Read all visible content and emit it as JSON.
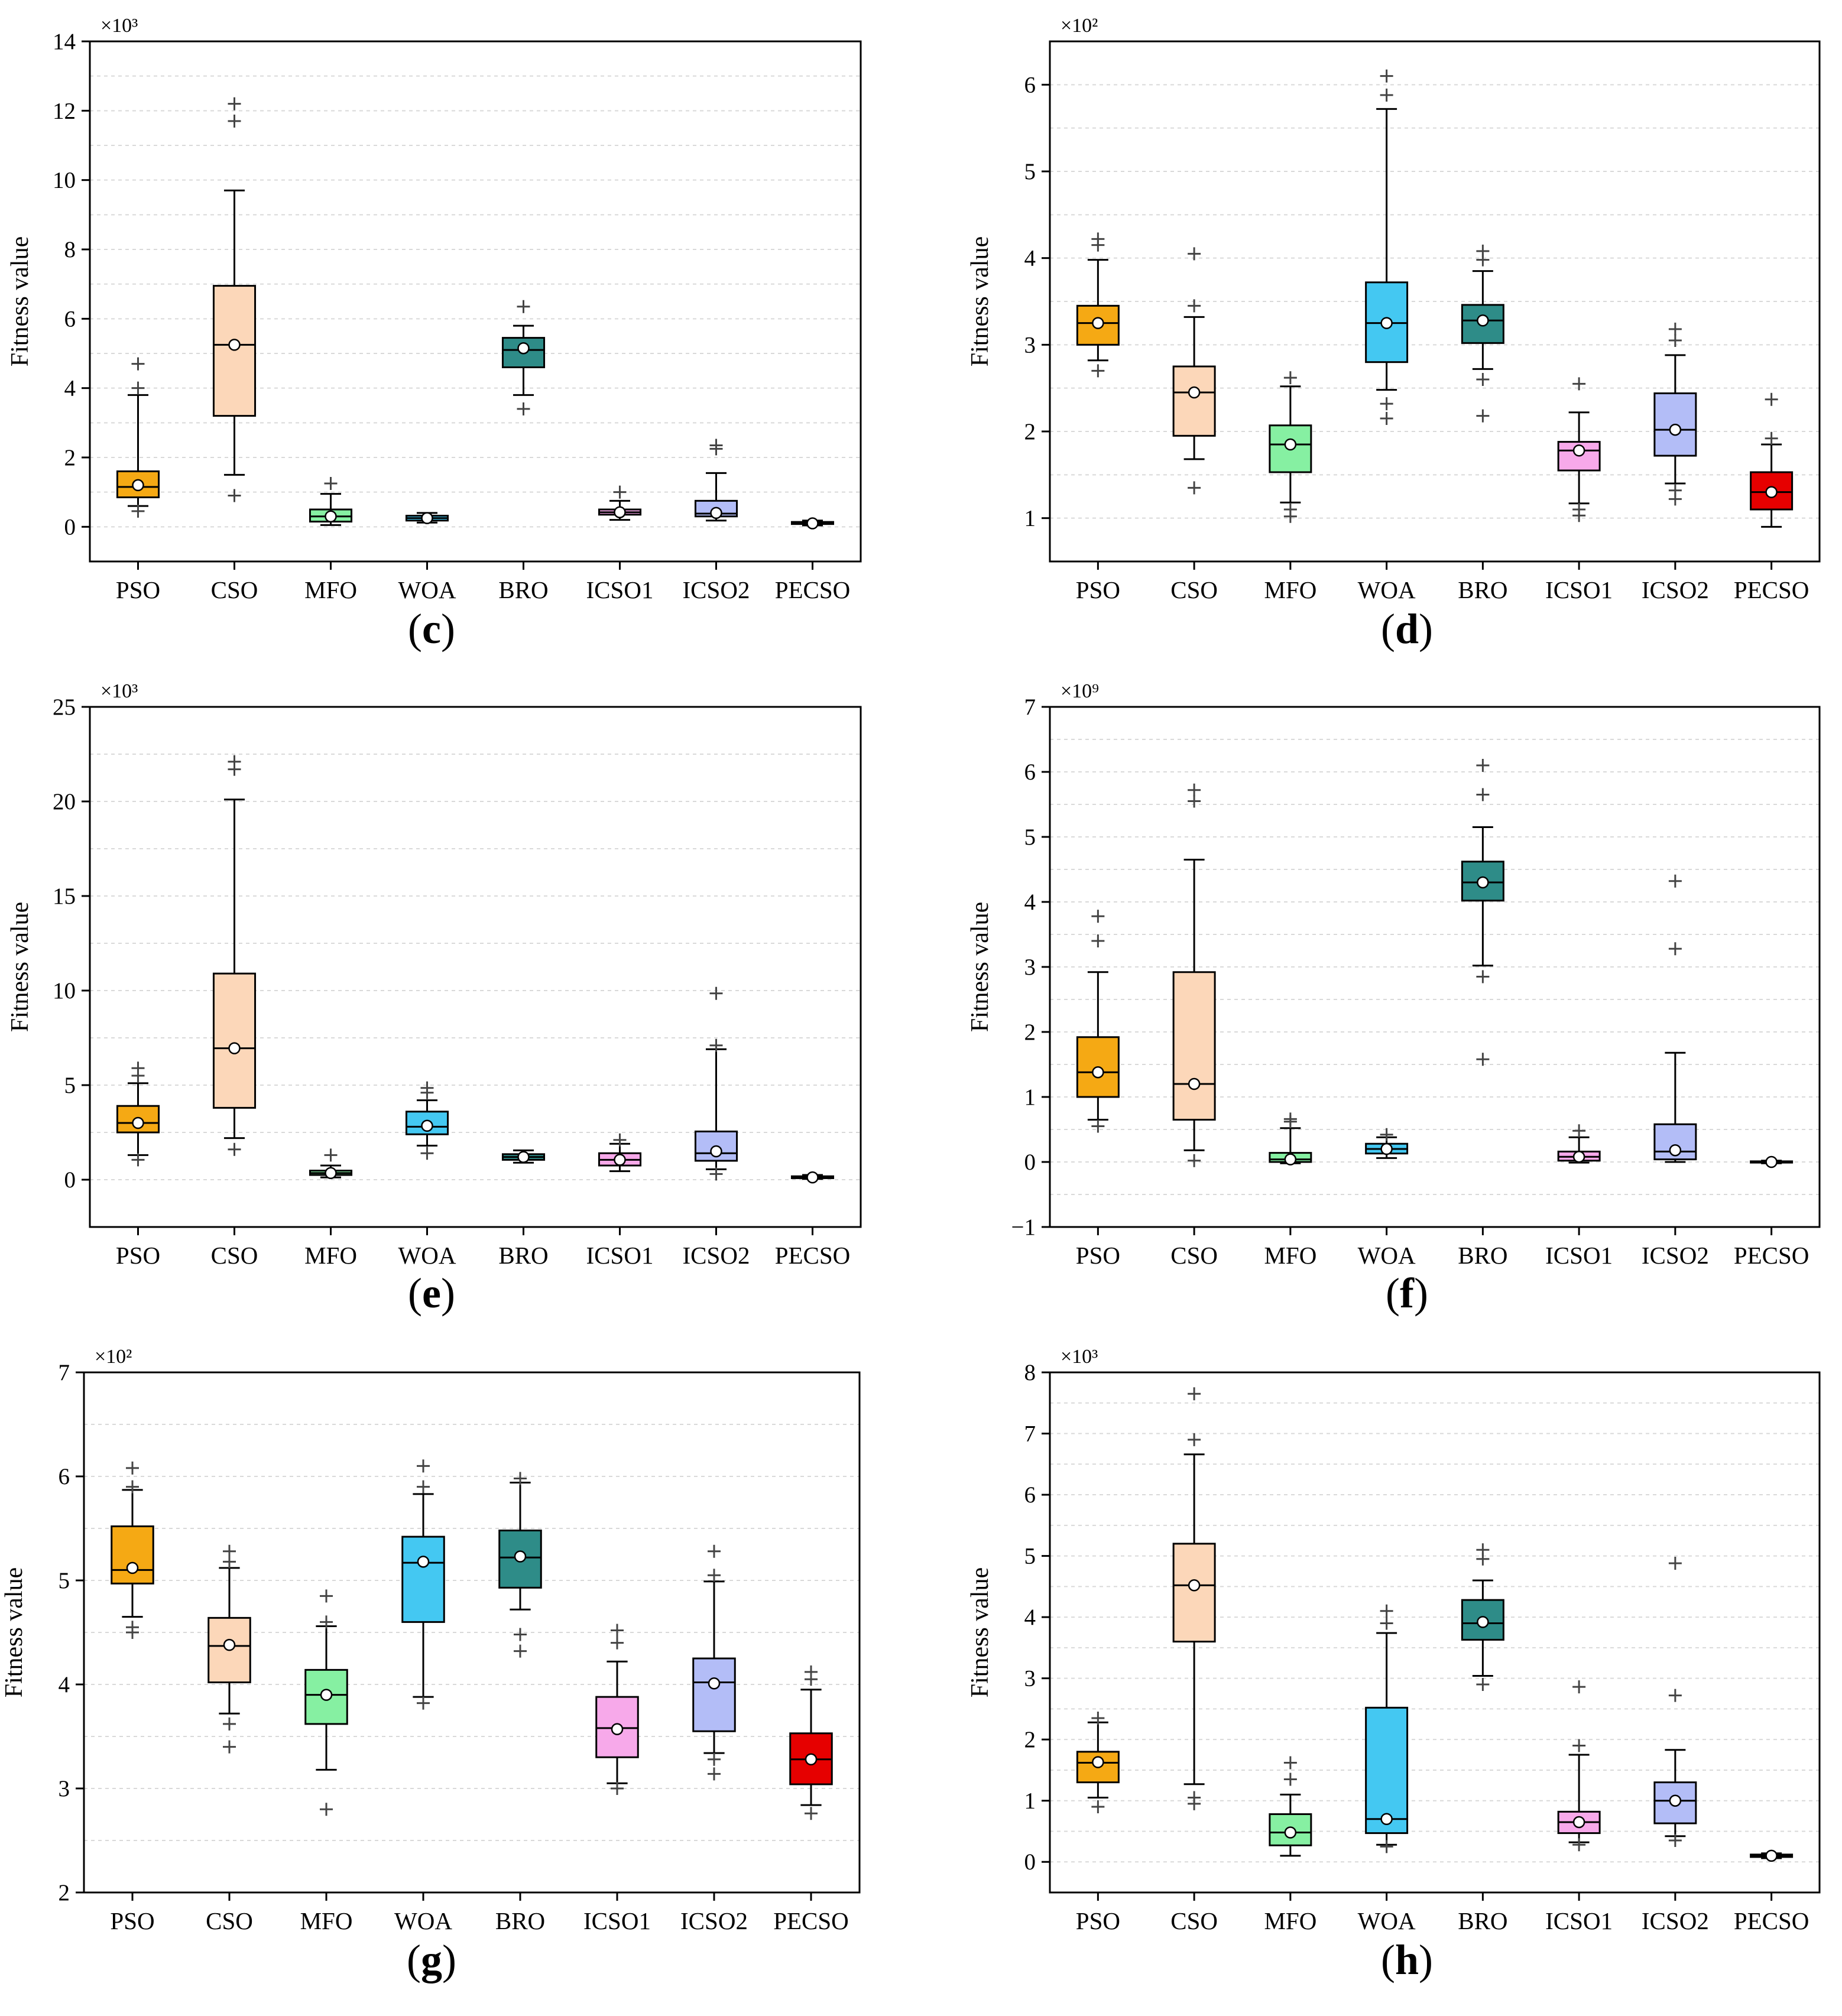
{
  "figure": {
    "y_axis_label": "Fitness value",
    "algorithms": [
      "PSO",
      "CSO",
      "MFO",
      "WOA",
      "BRO",
      "ICSO1",
      "ICSO2",
      "PECSO"
    ],
    "colors": {
      "PSO": "#F5A914",
      "CSO": "#FCD7B9",
      "MFO": "#86F0A2",
      "WOA": "#44C8F2",
      "BRO": "#2E8C88",
      "ICSO1": "#F7A9EA",
      "ICSO2": "#B3BDF7",
      "PECSO": "#E60000"
    }
  },
  "chart_data": [
    {
      "id": "c",
      "type": "box",
      "caption": "(c)",
      "multiplier": "×10³",
      "ylabel": "Fitness value",
      "ylim": [
        -1,
        14
      ],
      "yticks": [
        0,
        2,
        4,
        6,
        8,
        10,
        12,
        14
      ],
      "categories": [
        "PSO",
        "CSO",
        "MFO",
        "WOA",
        "BRO",
        "ICSO1",
        "ICSO2",
        "PECSO"
      ],
      "boxes": [
        {
          "name": "PSO",
          "q1": 0.85,
          "median": 1.15,
          "q3": 1.6,
          "mean": 1.2,
          "whisker_low": 0.6,
          "whisker_high": 3.8,
          "outliers": [
            4.0,
            4.7,
            0.45
          ]
        },
        {
          "name": "CSO",
          "q1": 3.2,
          "median": 5.25,
          "q3": 6.95,
          "mean": 5.25,
          "whisker_low": 1.5,
          "whisker_high": 9.7,
          "outliers": [
            11.7,
            12.2,
            0.9
          ]
        },
        {
          "name": "MFO",
          "q1": 0.15,
          "median": 0.3,
          "q3": 0.5,
          "mean": 0.3,
          "whisker_low": 0.05,
          "whisker_high": 0.95,
          "outliers": [
            1.25
          ]
        },
        {
          "name": "WOA",
          "q1": 0.18,
          "median": 0.25,
          "q3": 0.32,
          "mean": 0.25,
          "whisker_low": 0.12,
          "whisker_high": 0.4,
          "outliers": []
        },
        {
          "name": "BRO",
          "q1": 4.6,
          "median": 5.1,
          "q3": 5.45,
          "mean": 5.15,
          "whisker_low": 3.8,
          "whisker_high": 5.8,
          "outliers": [
            6.35,
            3.4
          ]
        },
        {
          "name": "ICSO1",
          "q1": 0.35,
          "median": 0.42,
          "q3": 0.5,
          "mean": 0.42,
          "whisker_low": 0.2,
          "whisker_high": 0.75,
          "outliers": [
            1.0
          ]
        },
        {
          "name": "ICSO2",
          "q1": 0.3,
          "median": 0.38,
          "q3": 0.75,
          "mean": 0.4,
          "whisker_low": 0.18,
          "whisker_high": 1.55,
          "outliers": [
            2.25,
            2.35
          ]
        },
        {
          "name": "PECSO",
          "q1": 0.08,
          "median": 0.1,
          "q3": 0.14,
          "mean": 0.1,
          "whisker_low": 0.04,
          "whisker_high": 0.18,
          "outliers": []
        }
      ]
    },
    {
      "id": "d",
      "type": "box",
      "caption": "(d)",
      "multiplier": "×10²",
      "ylabel": "Fitness value",
      "ylim": [
        0.5,
        6.5
      ],
      "yticks": [
        1,
        2,
        3,
        4,
        5,
        6
      ],
      "categories": [
        "PSO",
        "CSO",
        "MFO",
        "WOA",
        "BRO",
        "ICSO1",
        "ICSO2",
        "PECSO"
      ],
      "boxes": [
        {
          "name": "PSO",
          "q1": 3.0,
          "median": 3.25,
          "q3": 3.45,
          "mean": 3.25,
          "whisker_low": 2.82,
          "whisker_high": 3.98,
          "outliers": [
            4.15,
            4.22,
            2.7
          ]
        },
        {
          "name": "CSO",
          "q1": 1.95,
          "median": 2.45,
          "q3": 2.75,
          "mean": 2.45,
          "whisker_low": 1.68,
          "whisker_high": 3.32,
          "outliers": [
            3.45,
            4.05,
            1.35
          ]
        },
        {
          "name": "MFO",
          "q1": 1.53,
          "median": 1.85,
          "q3": 2.07,
          "mean": 1.85,
          "whisker_low": 1.18,
          "whisker_high": 2.52,
          "outliers": [
            2.62,
            1.1,
            1.02
          ]
        },
        {
          "name": "WOA",
          "q1": 2.8,
          "median": 3.25,
          "q3": 3.72,
          "mean": 3.25,
          "whisker_low": 2.48,
          "whisker_high": 5.72,
          "outliers": [
            5.88,
            6.1,
            2.32,
            2.15
          ]
        },
        {
          "name": "BRO",
          "q1": 3.02,
          "median": 3.28,
          "q3": 3.46,
          "mean": 3.28,
          "whisker_low": 2.72,
          "whisker_high": 3.85,
          "outliers": [
            3.98,
            4.08,
            2.6,
            2.18
          ]
        },
        {
          "name": "ICSO1",
          "q1": 1.55,
          "median": 1.78,
          "q3": 1.88,
          "mean": 1.78,
          "whisker_low": 1.17,
          "whisker_high": 2.22,
          "outliers": [
            2.55,
            1.1,
            1.03
          ]
        },
        {
          "name": "ICSO2",
          "q1": 1.72,
          "median": 2.02,
          "q3": 2.44,
          "mean": 2.02,
          "whisker_low": 1.4,
          "whisker_high": 2.88,
          "outliers": [
            3.05,
            3.18,
            1.32,
            1.22
          ]
        },
        {
          "name": "PECSO",
          "q1": 1.1,
          "median": 1.3,
          "q3": 1.53,
          "mean": 1.3,
          "whisker_low": 0.9,
          "whisker_high": 1.85,
          "outliers": [
            1.92,
            2.37
          ]
        }
      ]
    },
    {
      "id": "e",
      "type": "box",
      "caption": "(e)",
      "multiplier": "×10³",
      "ylabel": "Fitness value",
      "ylim": [
        -2.5,
        25
      ],
      "yticks": [
        0,
        5,
        10,
        15,
        20,
        25
      ],
      "categories": [
        "PSO",
        "CSO",
        "MFO",
        "WOA",
        "BRO",
        "ICSO1",
        "ICSO2",
        "PECSO"
      ],
      "boxes": [
        {
          "name": "PSO",
          "q1": 2.5,
          "median": 3.0,
          "q3": 3.9,
          "mean": 3.0,
          "whisker_low": 1.3,
          "whisker_high": 5.1,
          "outliers": [
            5.5,
            5.9,
            1.05
          ]
        },
        {
          "name": "CSO",
          "q1": 3.8,
          "median": 6.95,
          "q3": 10.9,
          "mean": 6.95,
          "whisker_low": 2.2,
          "whisker_high": 20.1,
          "outliers": [
            21.7,
            22.1,
            1.6
          ]
        },
        {
          "name": "MFO",
          "q1": 0.25,
          "median": 0.35,
          "q3": 0.48,
          "mean": 0.35,
          "whisker_low": 0.12,
          "whisker_high": 0.75,
          "outliers": [
            1.3
          ]
        },
        {
          "name": "WOA",
          "q1": 2.4,
          "median": 2.8,
          "q3": 3.6,
          "mean": 2.85,
          "whisker_low": 1.8,
          "whisker_high": 4.2,
          "outliers": [
            4.6,
            4.85,
            1.4
          ]
        },
        {
          "name": "BRO",
          "q1": 1.05,
          "median": 1.2,
          "q3": 1.35,
          "mean": 1.2,
          "whisker_low": 0.9,
          "whisker_high": 1.55,
          "outliers": []
        },
        {
          "name": "ICSO1",
          "q1": 0.75,
          "median": 1.05,
          "q3": 1.4,
          "mean": 1.05,
          "whisker_low": 0.45,
          "whisker_high": 1.9,
          "outliers": [
            2.1
          ]
        },
        {
          "name": "ICSO2",
          "q1": 1.0,
          "median": 1.4,
          "q3": 2.55,
          "mean": 1.5,
          "whisker_low": 0.55,
          "whisker_high": 6.9,
          "outliers": [
            7.1,
            9.85,
            0.3
          ]
        },
        {
          "name": "PECSO",
          "q1": 0.08,
          "median": 0.12,
          "q3": 0.18,
          "mean": 0.12,
          "whisker_low": 0.04,
          "whisker_high": 0.25,
          "outliers": []
        }
      ]
    },
    {
      "id": "f",
      "type": "box",
      "caption": "(f)",
      "multiplier": "×10⁹",
      "ylabel": "Fitness value",
      "ylim": [
        -1,
        7
      ],
      "yticks": [
        -1,
        0,
        1,
        2,
        3,
        4,
        5,
        6,
        7
      ],
      "categories": [
        "PSO",
        "CSO",
        "MFO",
        "WOA",
        "BRO",
        "ICSO1",
        "ICSO2",
        "PECSO"
      ],
      "boxes": [
        {
          "name": "PSO",
          "q1": 1.0,
          "median": 1.38,
          "q3": 1.92,
          "mean": 1.38,
          "whisker_low": 0.65,
          "whisker_high": 2.92,
          "outliers": [
            3.4,
            3.78,
            0.55
          ]
        },
        {
          "name": "CSO",
          "q1": 0.65,
          "median": 1.2,
          "q3": 2.92,
          "mean": 1.2,
          "whisker_low": 0.18,
          "whisker_high": 4.65,
          "outliers": [
            5.55,
            5.72,
            0.02
          ]
        },
        {
          "name": "MFO",
          "q1": 0.0,
          "median": 0.04,
          "q3": 0.14,
          "mean": 0.04,
          "whisker_low": -0.02,
          "whisker_high": 0.52,
          "outliers": [
            0.62,
            0.66
          ]
        },
        {
          "name": "WOA",
          "q1": 0.13,
          "median": 0.2,
          "q3": 0.28,
          "mean": 0.2,
          "whisker_low": 0.06,
          "whisker_high": 0.38,
          "outliers": [
            0.42
          ]
        },
        {
          "name": "BRO",
          "q1": 4.02,
          "median": 4.3,
          "q3": 4.62,
          "mean": 4.3,
          "whisker_low": 3.02,
          "whisker_high": 5.15,
          "outliers": [
            5.65,
            6.1,
            2.85,
            1.58
          ]
        },
        {
          "name": "ICSO1",
          "q1": 0.02,
          "median": 0.08,
          "q3": 0.16,
          "mean": 0.08,
          "whisker_low": -0.01,
          "whisker_high": 0.38,
          "outliers": [
            0.48
          ]
        },
        {
          "name": "ICSO2",
          "q1": 0.04,
          "median": 0.16,
          "q3": 0.58,
          "mean": 0.18,
          "whisker_low": 0.0,
          "whisker_high": 1.68,
          "outliers": [
            3.28,
            4.32
          ]
        },
        {
          "name": "PECSO",
          "q1": -0.01,
          "median": 0.0,
          "q3": 0.01,
          "mean": 0.0,
          "whisker_low": -0.02,
          "whisker_high": 0.02,
          "outliers": []
        }
      ]
    },
    {
      "id": "g",
      "type": "box",
      "caption": "(g)",
      "multiplier": "×10²",
      "ylabel": "Fitness value",
      "ylim": [
        2,
        7
      ],
      "yticks": [
        2,
        3,
        4,
        5,
        6,
        7
      ],
      "categories": [
        "PSO",
        "CSO",
        "MFO",
        "WOA",
        "BRO",
        "ICSO1",
        "ICSO2",
        "PECSO"
      ],
      "boxes": [
        {
          "name": "PSO",
          "q1": 4.97,
          "median": 5.1,
          "q3": 5.52,
          "mean": 5.12,
          "whisker_low": 4.65,
          "whisker_high": 5.87,
          "outliers": [
            5.9,
            6.08,
            4.55,
            4.5
          ]
        },
        {
          "name": "CSO",
          "q1": 4.02,
          "median": 4.37,
          "q3": 4.64,
          "mean": 4.38,
          "whisker_low": 3.72,
          "whisker_high": 5.12,
          "outliers": [
            5.18,
            5.28,
            3.62,
            3.4
          ]
        },
        {
          "name": "MFO",
          "q1": 3.62,
          "median": 3.9,
          "q3": 4.14,
          "mean": 3.9,
          "whisker_low": 3.18,
          "whisker_high": 4.56,
          "outliers": [
            4.6,
            4.85,
            2.8
          ]
        },
        {
          "name": "WOA",
          "q1": 4.6,
          "median": 5.17,
          "q3": 5.42,
          "mean": 5.18,
          "whisker_low": 3.88,
          "whisker_high": 5.83,
          "outliers": [
            5.9,
            6.1,
            3.82
          ]
        },
        {
          "name": "BRO",
          "q1": 4.93,
          "median": 5.22,
          "q3": 5.48,
          "mean": 5.23,
          "whisker_low": 4.72,
          "whisker_high": 5.94,
          "outliers": [
            5.98,
            4.48,
            4.32
          ]
        },
        {
          "name": "ICSO1",
          "q1": 3.3,
          "median": 3.58,
          "q3": 3.88,
          "mean": 3.57,
          "whisker_low": 3.05,
          "whisker_high": 4.22,
          "outliers": [
            4.4,
            4.52,
            3.0
          ]
        },
        {
          "name": "ICSO2",
          "q1": 3.55,
          "median": 4.02,
          "q3": 4.25,
          "mean": 4.01,
          "whisker_low": 3.34,
          "whisker_high": 4.99,
          "outliers": [
            5.05,
            5.28,
            3.28,
            3.14
          ]
        },
        {
          "name": "PECSO",
          "q1": 3.04,
          "median": 3.28,
          "q3": 3.53,
          "mean": 3.28,
          "whisker_low": 2.84,
          "whisker_high": 3.95,
          "outliers": [
            4.05,
            4.12,
            2.76
          ]
        }
      ]
    },
    {
      "id": "h",
      "type": "box",
      "caption": "(h)",
      "multiplier": "×10³",
      "ylabel": "Fitness value",
      "ylim": [
        -0.5,
        8
      ],
      "yticks": [
        0,
        1,
        2,
        3,
        4,
        5,
        6,
        7,
        8
      ],
      "categories": [
        "PSO",
        "CSO",
        "MFO",
        "WOA",
        "BRO",
        "ICSO1",
        "ICSO2",
        "PECSO"
      ],
      "boxes": [
        {
          "name": "PSO",
          "q1": 1.3,
          "median": 1.62,
          "q3": 1.8,
          "mean": 1.63,
          "whisker_low": 1.05,
          "whisker_high": 2.28,
          "outliers": [
            2.35,
            0.9
          ]
        },
        {
          "name": "CSO",
          "q1": 3.6,
          "median": 4.52,
          "q3": 5.2,
          "mean": 4.52,
          "whisker_low": 1.27,
          "whisker_high": 6.66,
          "outliers": [
            6.9,
            7.65,
            1.05,
            0.95
          ]
        },
        {
          "name": "MFO",
          "q1": 0.27,
          "median": 0.48,
          "q3": 0.78,
          "mean": 0.48,
          "whisker_low": 0.1,
          "whisker_high": 1.1,
          "outliers": [
            1.35,
            1.62
          ]
        },
        {
          "name": "WOA",
          "q1": 0.47,
          "median": 0.7,
          "q3": 2.52,
          "mean": 0.7,
          "whisker_low": 0.28,
          "whisker_high": 3.74,
          "outliers": [
            3.9,
            4.1,
            0.25
          ]
        },
        {
          "name": "BRO",
          "q1": 3.63,
          "median": 3.9,
          "q3": 4.28,
          "mean": 3.92,
          "whisker_low": 3.04,
          "whisker_high": 4.6,
          "outliers": [
            4.95,
            5.1,
            2.9
          ]
        },
        {
          "name": "ICSO1",
          "q1": 0.47,
          "median": 0.65,
          "q3": 0.82,
          "mean": 0.65,
          "whisker_low": 0.32,
          "whisker_high": 1.75,
          "outliers": [
            1.9,
            2.86,
            0.28
          ]
        },
        {
          "name": "ICSO2",
          "q1": 0.63,
          "median": 1.0,
          "q3": 1.3,
          "mean": 1.0,
          "whisker_low": 0.42,
          "whisker_high": 1.83,
          "outliers": [
            2.72,
            4.88,
            0.35
          ]
        },
        {
          "name": "PECSO",
          "q1": 0.08,
          "median": 0.1,
          "q3": 0.12,
          "mean": 0.1,
          "whisker_low": 0.06,
          "whisker_high": 0.14,
          "outliers": []
        }
      ]
    }
  ]
}
